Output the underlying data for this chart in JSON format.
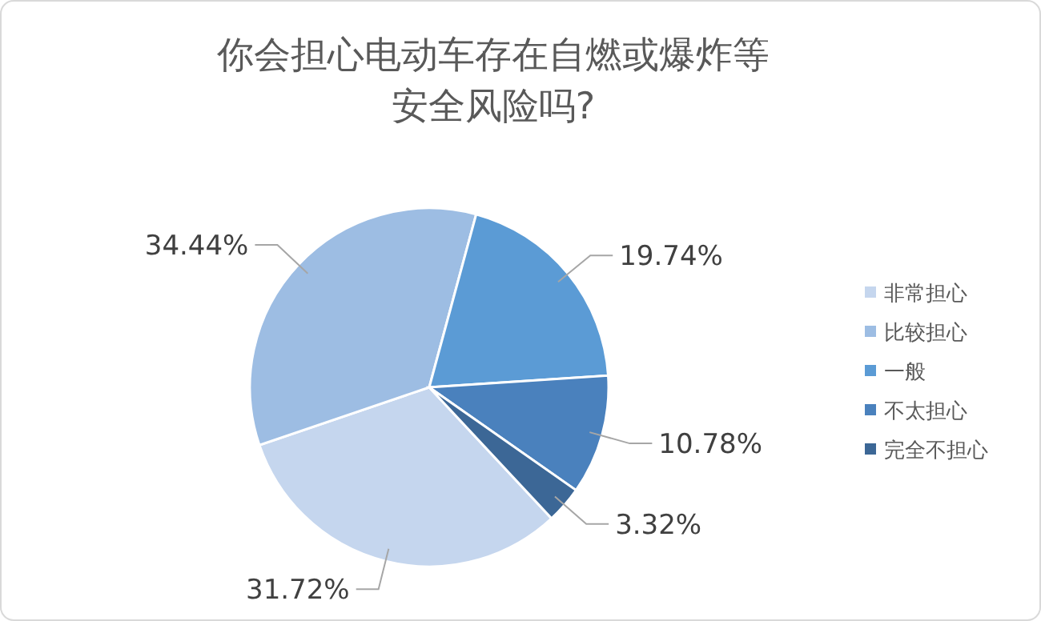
{
  "chart_data": {
    "type": "pie",
    "title": "你会担心电动车存在自燃或爆炸等安全风险吗?",
    "categories": [
      "非常担心",
      "比较担心",
      "一般",
      "不太担心",
      "完全不担心"
    ],
    "values": [
      31.72,
      34.44,
      19.74,
      10.78,
      3.32
    ],
    "value_labels": [
      "31.72%",
      "34.44%",
      "19.74%",
      "10.78%",
      "3.32%"
    ],
    "colors": [
      "#c5d6ee",
      "#9dbde3",
      "#5b9bd5",
      "#4a81bd",
      "#3c6796"
    ],
    "legend": "right"
  }
}
